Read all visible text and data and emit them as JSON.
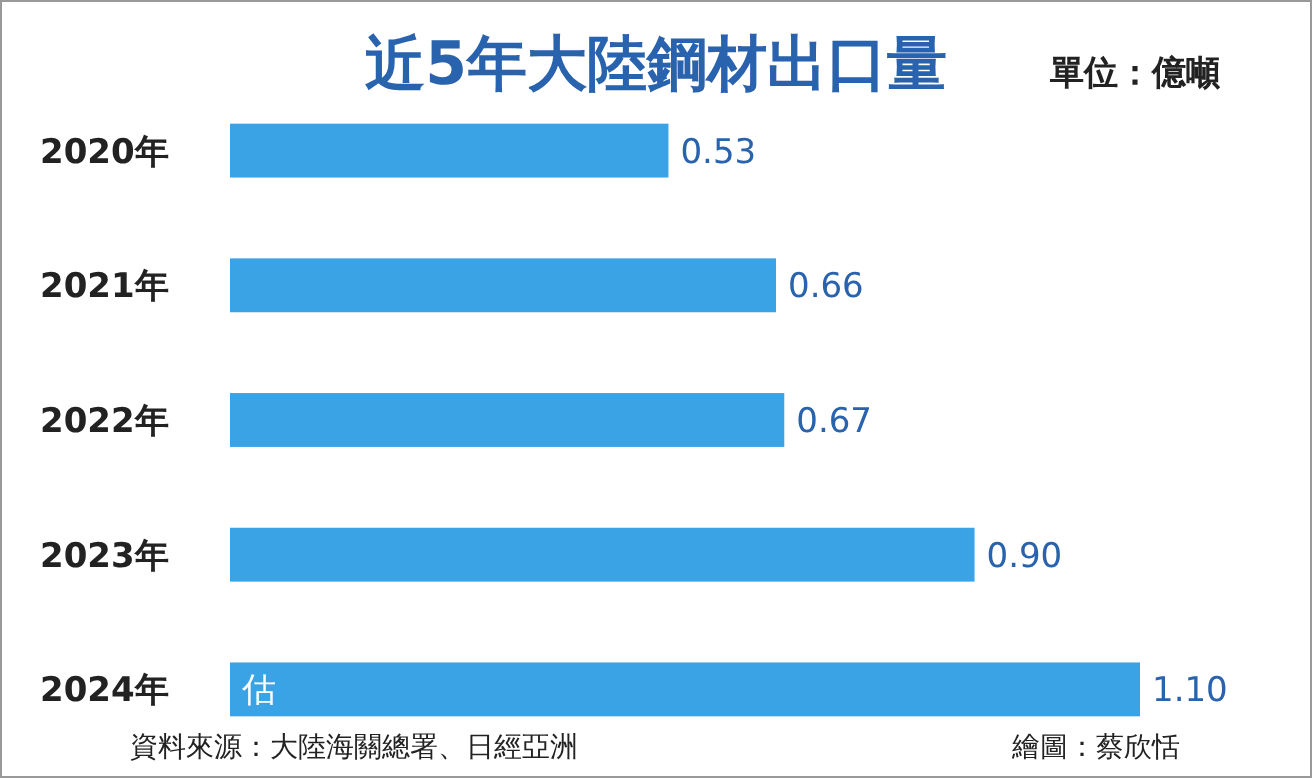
{
  "chart_data": {
    "type": "bar",
    "orientation": "horizontal",
    "title": "近5年大陸鋼材出口量",
    "subtitle": "單位：億噸",
    "categories": [
      "2020年",
      "2021年",
      "2022年",
      "2023年",
      "2024年"
    ],
    "values": [
      0.53,
      0.66,
      0.67,
      0.9,
      1.1
    ],
    "value_labels": [
      "0.53",
      "0.66",
      "0.67",
      "0.90",
      "1.10"
    ],
    "color": "#3aa3e6",
    "annotations": [
      {
        "text": "估",
        "x": 0,
        "y": "2024年"
      },
      "資料來源：大陸海關總署、日經亞洲",
      "繪圖：蔡欣恬"
    ]
  }
}
